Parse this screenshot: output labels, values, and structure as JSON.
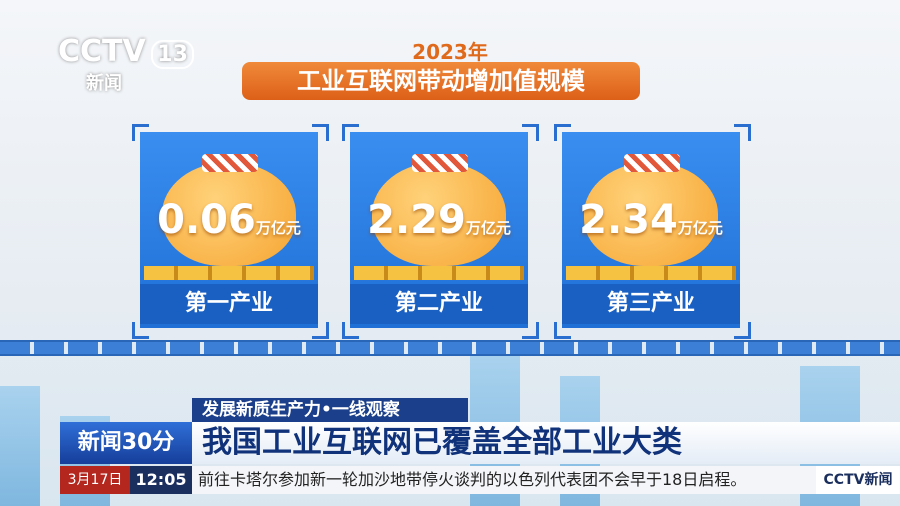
{
  "logo": {
    "channel": "CCTV",
    "number": "13",
    "sub": "新闻"
  },
  "infographic": {
    "year": "2023年",
    "title": "工业互联网带动增加值规模",
    "cards": [
      {
        "value": "0.06",
        "unit": "万亿元",
        "label": "第一产业"
      },
      {
        "value": "2.29",
        "unit": "万亿元",
        "label": "第二产业"
      },
      {
        "value": "2.34",
        "unit": "万亿元",
        "label": "第三产业"
      }
    ]
  },
  "lower_third": {
    "tag": "发展新质生产力•一线观察",
    "program": "新闻30分",
    "headline": "我国工业互联网已覆盖全部工业大类"
  },
  "ticker": {
    "date": "3月17日",
    "time": "12:05",
    "text": "前往卡塔尔参加新一轮加沙地带停火谈判的以色列代表团不会早于18日启程。",
    "brand": "CCTV新闻"
  }
}
